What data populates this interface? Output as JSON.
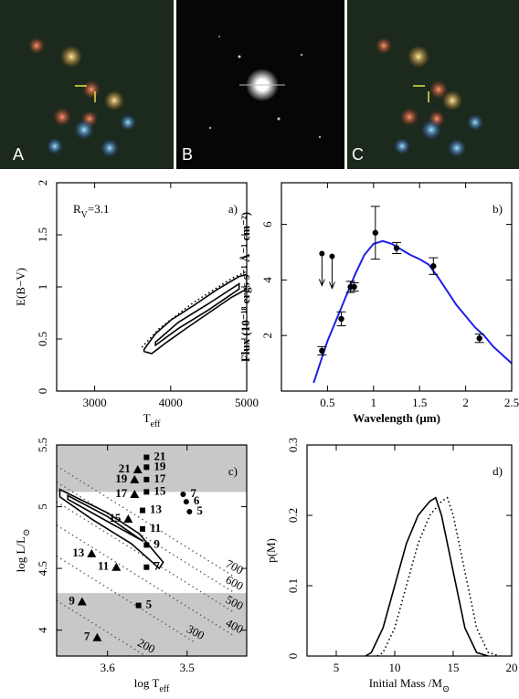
{
  "image_labels": [
    "A",
    "B",
    "C"
  ],
  "chart_data": [
    {
      "type": "contour",
      "panel_label": "a)",
      "annotation": [
        "R",
        "V",
        "=3.1"
      ],
      "xlabel": [
        "T",
        "eff"
      ],
      "ylabel": [
        "E(B−V)"
      ],
      "xlim": [
        2500,
        5000
      ],
      "xticks": [
        3000,
        4000,
        5000
      ],
      "ylim": [
        0,
        2
      ],
      "yticks": [
        0,
        0.5,
        1,
        1.5,
        2
      ],
      "contours": [
        {
          "style": "solid",
          "points": [
            [
              3650,
              0.4
            ],
            [
              3800,
              0.55
            ],
            [
              4000,
              0.68
            ],
            [
              4300,
              0.82
            ],
            [
              4600,
              0.97
            ],
            [
              4900,
              1.1
            ],
            [
              5000,
              1.12
            ],
            [
              5000,
              0.98
            ],
            [
              4800,
              0.9
            ],
            [
              4500,
              0.75
            ],
            [
              4200,
              0.6
            ],
            [
              3950,
              0.47
            ],
            [
              3750,
              0.36
            ],
            [
              3650,
              0.38
            ]
          ]
        },
        {
          "style": "solid",
          "points": [
            [
              3800,
              0.47
            ],
            [
              4100,
              0.66
            ],
            [
              4500,
              0.84
            ],
            [
              4900,
              1.03
            ],
            [
              4900,
              0.98
            ],
            [
              4500,
              0.78
            ],
            [
              4100,
              0.6
            ],
            [
              3800,
              0.44
            ]
          ]
        },
        {
          "style": "dotted",
          "points": [
            [
              3620,
              0.42
            ],
            [
              3850,
              0.6
            ],
            [
              4300,
              0.85
            ],
            [
              4800,
              1.08
            ],
            [
              5000,
              1.15
            ]
          ]
        }
      ]
    },
    {
      "type": "sed",
      "panel_label": "b)",
      "xlabel": [
        "Wavelength (μm)"
      ],
      "ylabel": [
        "Flux (10⁻¹⁸ ergs s⁻¹ Å⁻¹ cm⁻²)"
      ],
      "xlim": [
        0,
        2.5
      ],
      "xticks": [
        0.5,
        1,
        1.5,
        2,
        2.5
      ],
      "ylim": [
        0,
        7.5
      ],
      "yticks": [
        2,
        4,
        6
      ],
      "model": {
        "color": "#1f1fe6",
        "x": [
          0.35,
          0.4,
          0.45,
          0.5,
          0.55,
          0.6,
          0.7,
          0.8,
          0.9,
          1.0,
          1.1,
          1.2,
          1.3,
          1.4,
          1.5,
          1.6,
          1.7,
          1.8,
          1.9,
          2.0,
          2.1,
          2.2,
          2.3,
          2.4,
          2.5
        ],
        "y": [
          0.3,
          0.8,
          1.3,
          1.8,
          2.2,
          2.6,
          3.4,
          4.2,
          4.9,
          5.3,
          5.4,
          5.3,
          5.1,
          4.9,
          4.75,
          4.55,
          4.1,
          3.6,
          3.1,
          2.7,
          2.3,
          2.0,
          1.6,
          1.3,
          1.0
        ]
      },
      "points": {
        "x": [
          0.44,
          0.65,
          0.75,
          0.79,
          1.02,
          1.25,
          1.65,
          2.15
        ],
        "y": [
          1.45,
          2.6,
          3.75,
          3.75,
          5.7,
          5.15,
          4.5,
          1.9
        ],
        "yerr": [
          0.15,
          0.25,
          0.2,
          0.15,
          0.95,
          0.2,
          0.3,
          0.15
        ]
      },
      "upper_limits": {
        "x": [
          0.44,
          0.55
        ],
        "y": [
          4.95,
          4.85
        ]
      }
    },
    {
      "type": "hr",
      "panel_label": "c)",
      "xlabel": [
        "log T",
        "eff"
      ],
      "ylabel": [
        "log L/L",
        "⊙"
      ],
      "xlim": [
        3.664,
        3.425
      ],
      "xticks": [
        3.6,
        3.5
      ],
      "ylim": [
        3.79,
        5.5
      ],
      "yticks": [
        4,
        4.5,
        5,
        5.5
      ],
      "shade": [
        [
          5.12,
          5.5
        ],
        [
          3.79,
          4.3
        ]
      ],
      "iso_radius": [
        {
          "label": "700",
          "points": [
            [
              3.664,
              5.33
            ],
            [
              3.44,
              4.43
            ]
          ]
        },
        {
          "label": "600",
          "points": [
            [
              3.664,
              5.2
            ],
            [
              3.44,
              4.3
            ]
          ]
        },
        {
          "label": "500",
          "points": [
            [
              3.664,
              5.04
            ],
            [
              3.44,
              4.14
            ]
          ]
        },
        {
          "label": "400",
          "points": [
            [
              3.664,
              4.85
            ],
            [
              3.44,
              3.95
            ]
          ]
        },
        {
          "label": "300",
          "points": [
            [
              3.664,
              4.6
            ],
            [
              3.49,
              3.9
            ]
          ]
        },
        {
          "label": "200",
          "points": [
            [
              3.664,
              4.24
            ],
            [
              3.552,
              3.79
            ]
          ]
        }
      ],
      "contours": [
        {
          "points": [
            [
              3.66,
              5.14
            ],
            [
              3.6,
              4.95
            ],
            [
              3.56,
              4.78
            ],
            [
              3.53,
              4.55
            ],
            [
              3.535,
              4.5
            ],
            [
              3.57,
              4.7
            ],
            [
              3.62,
              4.9
            ],
            [
              3.66,
              5.08
            ]
          ]
        },
        {
          "points": [
            [
              3.65,
              5.09
            ],
            [
              3.6,
              4.92
            ],
            [
              3.56,
              4.74
            ],
            [
              3.555,
              4.72
            ],
            [
              3.6,
              4.88
            ],
            [
              3.65,
              5.06
            ]
          ]
        }
      ],
      "tracks": [
        {
          "marker": "square",
          "x": [
            3.551,
            3.551,
            3.551,
            3.551,
            3.556,
            3.556,
            3.551,
            3.551,
            3.561
          ],
          "y": [
            5.4,
            5.32,
            5.22,
            5.12,
            4.97,
            4.82,
            4.69,
            4.51,
            4.2
          ],
          "labels": [
            "21",
            "19",
            "17",
            "15",
            "13",
            "11",
            "9",
            "7",
            "5"
          ]
        },
        {
          "marker": "triangle",
          "x": [
            3.562,
            3.566,
            3.566,
            3.574,
            3.62,
            3.589,
            3.632,
            3.613
          ],
          "y": [
            5.3,
            5.22,
            5.1,
            4.9,
            4.62,
            4.51,
            4.23,
            3.94
          ],
          "labels": [
            "21",
            "19",
            "17",
            "15",
            "13",
            "11",
            "9",
            "7"
          ]
        },
        {
          "marker": "circle",
          "x": [
            3.505,
            3.501,
            3.497
          ],
          "y": [
            5.1,
            5.04,
            4.96
          ],
          "labels": [
            "7",
            "6",
            "5"
          ]
        }
      ]
    },
    {
      "type": "line",
      "panel_label": "d)",
      "xlabel": [
        "Initial Mass /M",
        "⊙"
      ],
      "ylabel": [
        "p(M)"
      ],
      "xlim": [
        2.5,
        20
      ],
      "xticks": [
        5,
        10,
        15,
        20
      ],
      "ylim": [
        0,
        0.3
      ],
      "yticks": [
        0,
        0.1,
        0.2,
        0.3
      ],
      "series": [
        {
          "style": "solid",
          "x": [
            7.5,
            8,
            9,
            10,
            11,
            12,
            13,
            13.5,
            14,
            15,
            16,
            17,
            18
          ],
          "y": [
            0,
            0.005,
            0.04,
            0.1,
            0.16,
            0.2,
            0.22,
            0.225,
            0.2,
            0.12,
            0.04,
            0.005,
            0
          ]
        },
        {
          "style": "dotted",
          "x": [
            8.5,
            9,
            10,
            11,
            12,
            13,
            14,
            14.5,
            15,
            16,
            17,
            18,
            19
          ],
          "y": [
            0,
            0.005,
            0.04,
            0.1,
            0.16,
            0.2,
            0.22,
            0.225,
            0.2,
            0.12,
            0.04,
            0.005,
            0
          ]
        }
      ]
    }
  ]
}
